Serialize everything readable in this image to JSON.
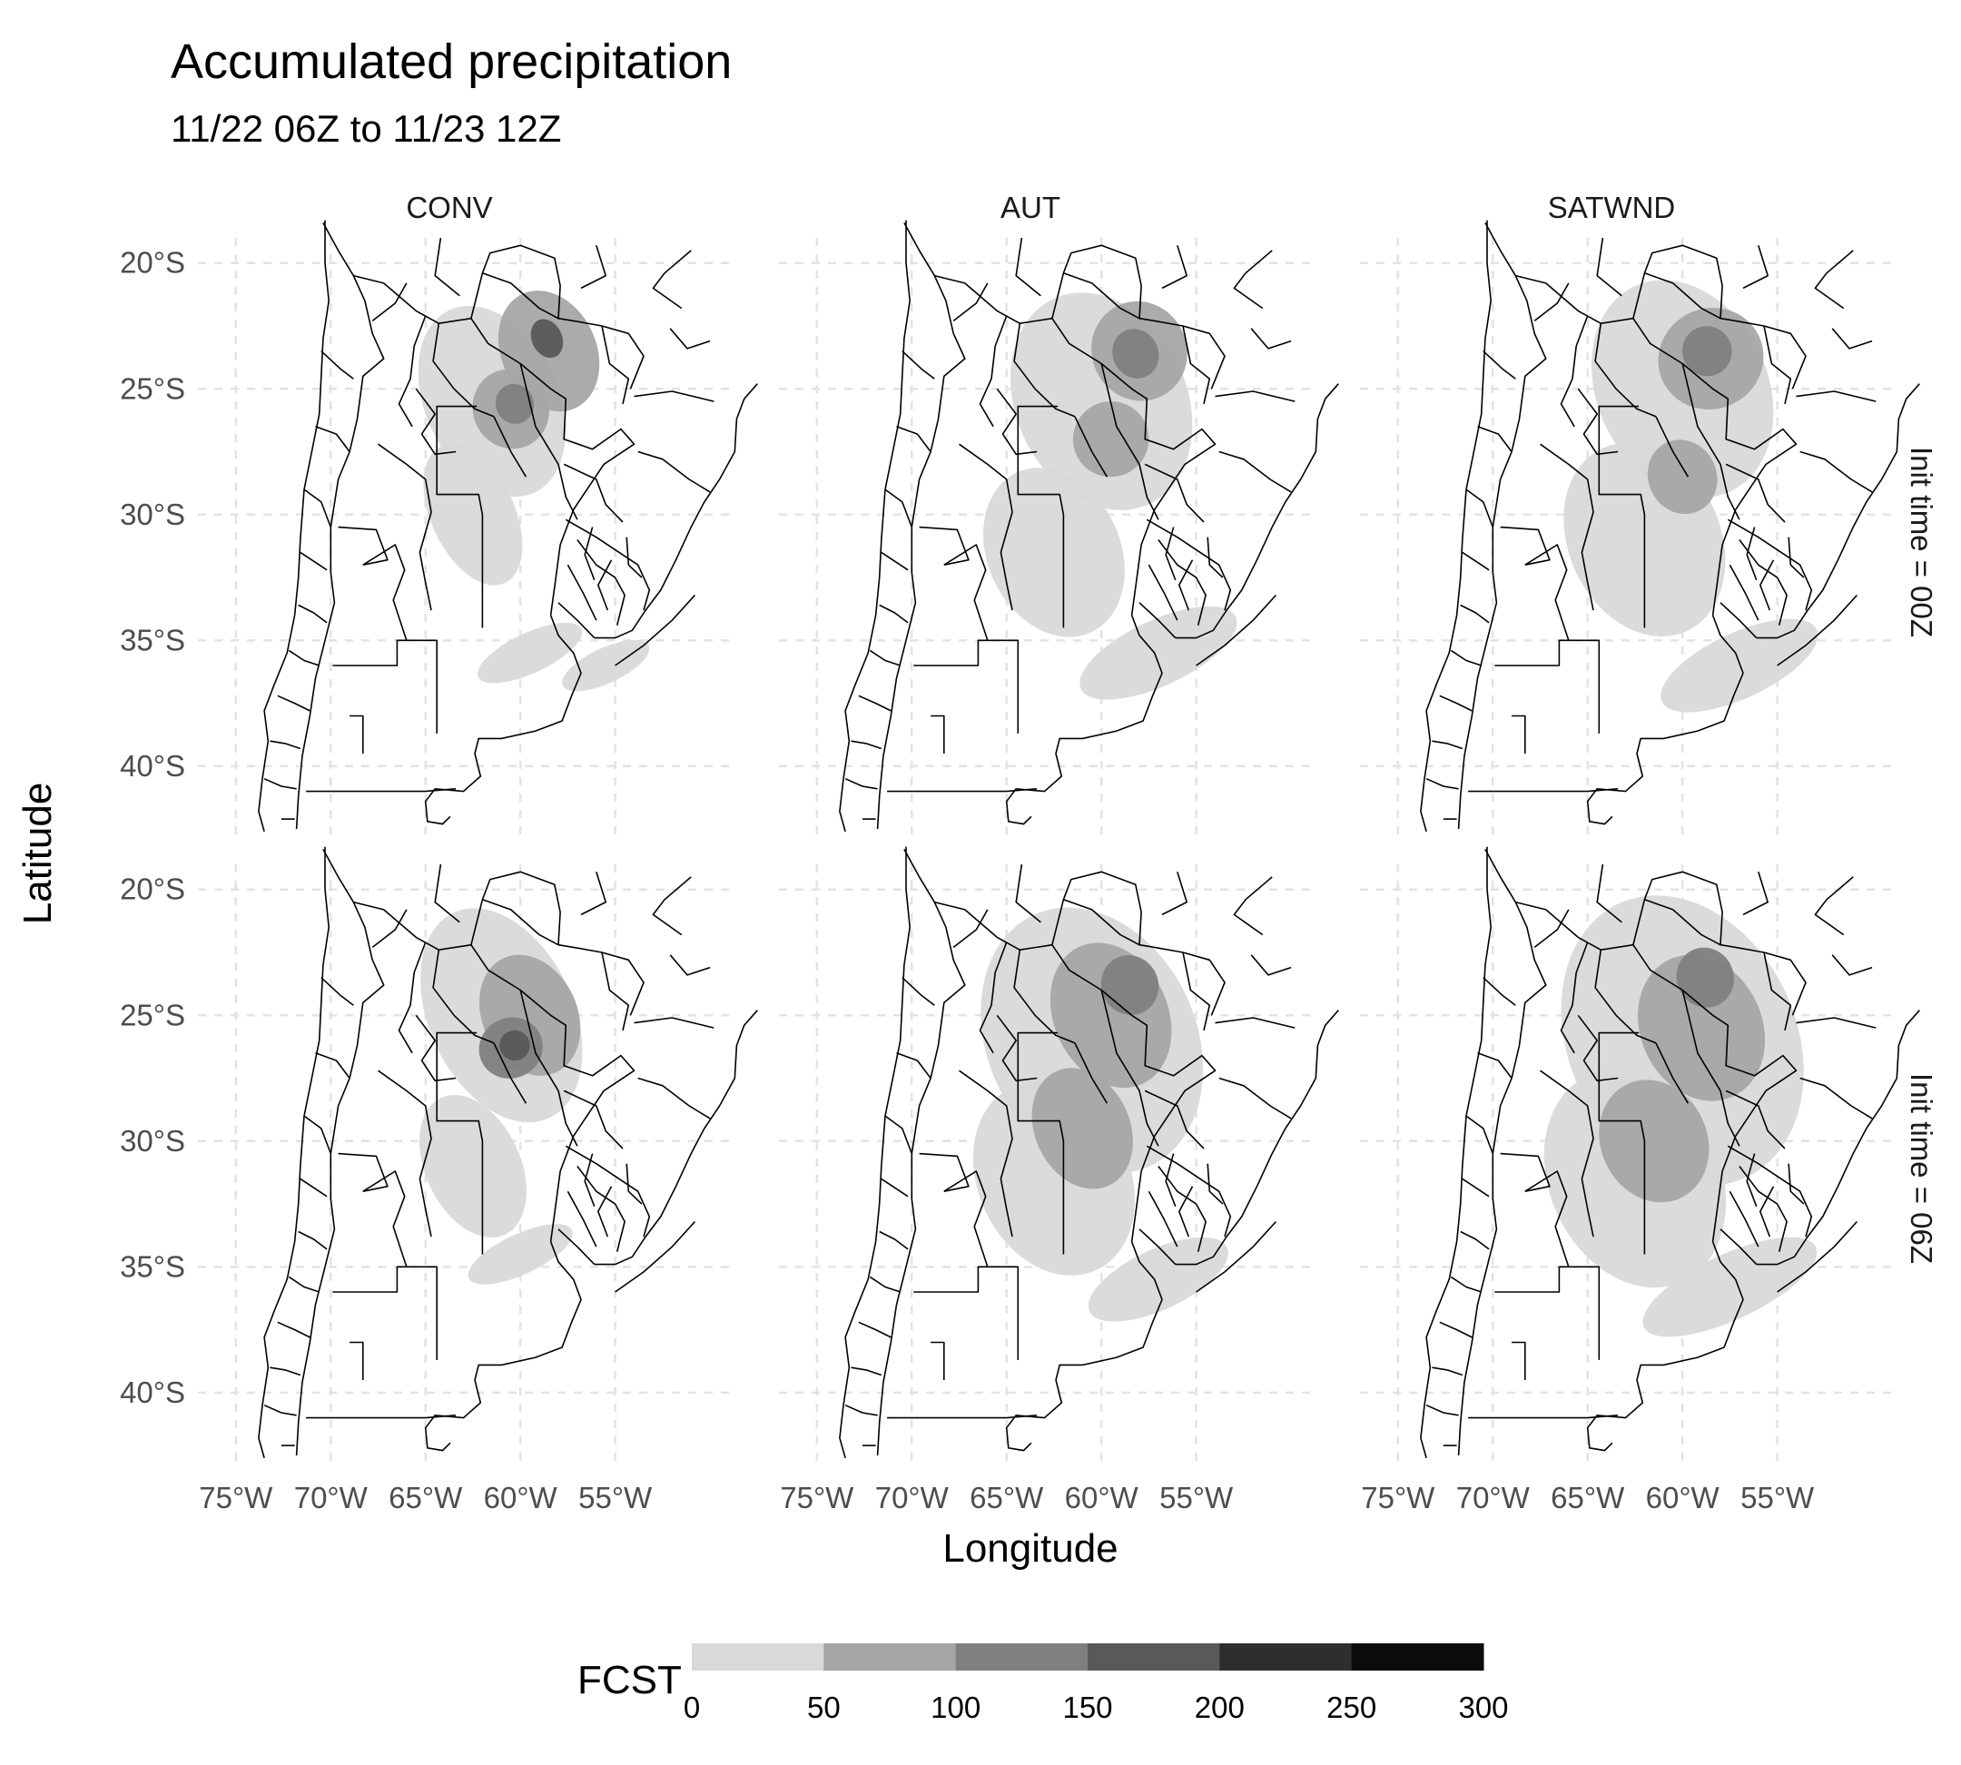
{
  "title": "Accumulated precipitation",
  "subtitle": "11/22 06Z to 11/23 12Z",
  "columns": [
    "CONV",
    "AUT",
    "SATWND"
  ],
  "rows": [
    "Init time = 00Z",
    "Init time = 06Z"
  ],
  "xlabel": "Longitude",
  "ylabel": "Latitude",
  "x_ticks": [
    "75°W",
    "70°W",
    "65°W",
    "60°W",
    "55°W"
  ],
  "y_ticks": [
    "20°S",
    "25°S",
    "30°S",
    "35°S",
    "40°S"
  ],
  "legend": {
    "title": "FCST",
    "breaks": [
      "0",
      "50",
      "100",
      "150",
      "200",
      "250",
      "300"
    ],
    "colors": [
      "#d9d9d9",
      "#a6a6a6",
      "#808080",
      "#595959",
      "#2e2e2e",
      "#0c0c0c"
    ]
  },
  "chart_data": {
    "type": "heatmap",
    "description_units": "mm",
    "x_range": [
      -77,
      -49
    ],
    "y_range": [
      -43,
      -19
    ],
    "x_ticks_deg": [
      -75,
      -70,
      -65,
      -60,
      -55
    ],
    "y_ticks_deg": [
      -20,
      -25,
      -30,
      -35,
      -40
    ],
    "grid": true,
    "legend_position": "bottom",
    "value_range": [
      0,
      300
    ],
    "panels": [
      {
        "column": "CONV",
        "row": "Init time = 00Z",
        "features": [
          {
            "lon": -61.5,
            "lat": -25.5,
            "rlon": 3.5,
            "rlat": 4.0,
            "level": 0
          },
          {
            "lon": -62.5,
            "lat": -30.0,
            "rlon": 2.2,
            "rlat": 3.0,
            "level": 0
          },
          {
            "lon": -59.5,
            "lat": -35.5,
            "rlon": 3.0,
            "rlat": 0.8,
            "level": 0
          },
          {
            "lon": -55.5,
            "lat": -36.0,
            "rlon": 2.5,
            "rlat": 0.7,
            "level": 0
          },
          {
            "lon": -58.5,
            "lat": -23.5,
            "rlon": 2.5,
            "rlat": 2.5,
            "level": 1
          },
          {
            "lon": -60.5,
            "lat": -25.8,
            "rlon": 2.0,
            "rlat": 1.6,
            "level": 1
          },
          {
            "lon": -60.3,
            "lat": -25.6,
            "rlon": 1.0,
            "rlat": 0.8,
            "level": 2
          },
          {
            "lon": -58.6,
            "lat": -23.0,
            "rlon": 0.8,
            "rlat": 0.8,
            "level": 3
          }
        ]
      },
      {
        "column": "AUT",
        "row": "Init time = 00Z",
        "features": [
          {
            "lon": -60.0,
            "lat": -25.5,
            "rlon": 4.5,
            "rlat": 4.5,
            "level": 0
          },
          {
            "lon": -62.5,
            "lat": -31.5,
            "rlon": 3.5,
            "rlat": 3.5,
            "level": 0
          },
          {
            "lon": -57.0,
            "lat": -35.5,
            "rlon": 4.5,
            "rlat": 1.3,
            "level": 0
          },
          {
            "lon": -58.0,
            "lat": -23.5,
            "rlon": 2.5,
            "rlat": 2.0,
            "level": 1
          },
          {
            "lon": -59.5,
            "lat": -27.0,
            "rlon": 2.0,
            "rlat": 1.5,
            "level": 1
          },
          {
            "lon": -58.2,
            "lat": -23.6,
            "rlon": 1.2,
            "rlat": 1.0,
            "level": 2
          }
        ]
      },
      {
        "column": "SATWND",
        "row": "Init time = 00Z",
        "features": [
          {
            "lon": -60.0,
            "lat": -25.0,
            "rlon": 4.5,
            "rlat": 4.5,
            "level": 0
          },
          {
            "lon": -62.0,
            "lat": -31.0,
            "rlon": 4.0,
            "rlat": 4.0,
            "level": 0
          },
          {
            "lon": -57.0,
            "lat": -36.0,
            "rlon": 4.5,
            "rlat": 1.3,
            "level": 0
          },
          {
            "lon": -58.5,
            "lat": -23.8,
            "rlon": 2.8,
            "rlat": 2.0,
            "level": 1
          },
          {
            "lon": -60.0,
            "lat": -28.5,
            "rlon": 1.8,
            "rlat": 1.5,
            "level": 1
          },
          {
            "lon": -58.7,
            "lat": -23.5,
            "rlon": 1.3,
            "rlat": 1.0,
            "level": 2
          }
        ]
      },
      {
        "column": "CONV",
        "row": "Init time = 06Z",
        "features": [
          {
            "lon": -61.0,
            "lat": -25.0,
            "rlon": 3.8,
            "rlat": 4.5,
            "level": 0
          },
          {
            "lon": -62.5,
            "lat": -31.0,
            "rlon": 2.5,
            "rlat": 3.0,
            "level": 0
          },
          {
            "lon": -60.0,
            "lat": -34.5,
            "rlon": 3.0,
            "rlat": 0.8,
            "level": 0
          },
          {
            "lon": -59.5,
            "lat": -25.0,
            "rlon": 2.5,
            "rlat": 2.5,
            "level": 1
          },
          {
            "lon": -60.5,
            "lat": -26.3,
            "rlon": 1.7,
            "rlat": 1.2,
            "level": 2
          },
          {
            "lon": -60.3,
            "lat": -26.2,
            "rlon": 0.8,
            "rlat": 0.6,
            "level": 3
          }
        ]
      },
      {
        "column": "AUT",
        "row": "Init time = 06Z",
        "features": [
          {
            "lon": -60.5,
            "lat": -26.0,
            "rlon": 5.5,
            "rlat": 5.5,
            "level": 0
          },
          {
            "lon": -62.5,
            "lat": -31.5,
            "rlon": 4.0,
            "rlat": 4.0,
            "level": 0
          },
          {
            "lon": -57.0,
            "lat": -35.5,
            "rlon": 4.0,
            "rlat": 1.2,
            "level": 0
          },
          {
            "lon": -59.5,
            "lat": -25.0,
            "rlon": 3.0,
            "rlat": 3.0,
            "level": 1
          },
          {
            "lon": -61.0,
            "lat": -29.5,
            "rlon": 2.5,
            "rlat": 2.5,
            "level": 1
          },
          {
            "lon": -58.5,
            "lat": -23.8,
            "rlon": 1.5,
            "rlat": 1.2,
            "level": 2
          }
        ]
      },
      {
        "column": "SATWND",
        "row": "Init time = 06Z",
        "features": [
          {
            "lon": -60.0,
            "lat": -26.0,
            "rlon": 6.0,
            "rlat": 6.0,
            "level": 0
          },
          {
            "lon": -62.5,
            "lat": -31.5,
            "rlon": 4.5,
            "rlat": 4.5,
            "level": 0
          },
          {
            "lon": -57.5,
            "lat": -35.8,
            "rlon": 5.0,
            "rlat": 1.3,
            "level": 0
          },
          {
            "lon": -59.0,
            "lat": -25.5,
            "rlon": 3.2,
            "rlat": 3.0,
            "level": 1
          },
          {
            "lon": -61.5,
            "lat": -30.0,
            "rlon": 2.8,
            "rlat": 2.5,
            "level": 1
          },
          {
            "lon": -58.8,
            "lat": -23.5,
            "rlon": 1.5,
            "rlat": 1.2,
            "level": 2
          }
        ]
      }
    ]
  }
}
